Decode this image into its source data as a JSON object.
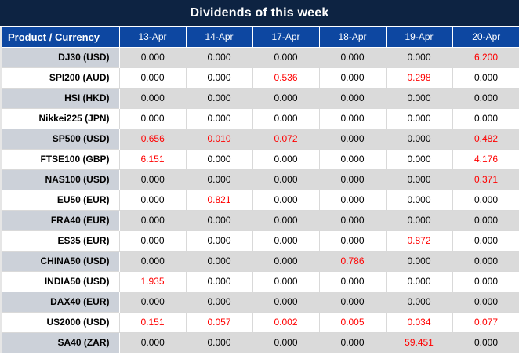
{
  "title": "Dividends of this week",
  "columns": [
    "Product / Currency",
    "13-Apr",
    "14-Apr",
    "17-Apr",
    "18-Apr",
    "19-Apr",
    "20-Apr"
  ],
  "rows": [
    {
      "product": "DJ30 (USD)",
      "values": [
        "0.000",
        "0.000",
        "0.000",
        "0.000",
        "0.000",
        "6.200"
      ],
      "red": [
        false,
        false,
        false,
        false,
        false,
        true
      ]
    },
    {
      "product": "SPI200 (AUD)",
      "values": [
        "0.000",
        "0.000",
        "0.536",
        "0.000",
        "0.298",
        "0.000"
      ],
      "red": [
        false,
        false,
        true,
        false,
        true,
        false
      ]
    },
    {
      "product": "HSI (HKD)",
      "values": [
        "0.000",
        "0.000",
        "0.000",
        "0.000",
        "0.000",
        "0.000"
      ],
      "red": [
        false,
        false,
        false,
        false,
        false,
        false
      ]
    },
    {
      "product": "Nikkei225 (JPN)",
      "values": [
        "0.000",
        "0.000",
        "0.000",
        "0.000",
        "0.000",
        "0.000"
      ],
      "red": [
        false,
        false,
        false,
        false,
        false,
        false
      ]
    },
    {
      "product": "SP500 (USD)",
      "values": [
        "0.656",
        "0.010",
        "0.072",
        "0.000",
        "0.000",
        "0.482"
      ],
      "red": [
        true,
        true,
        true,
        false,
        false,
        true
      ]
    },
    {
      "product": "FTSE100 (GBP)",
      "values": [
        "6.151",
        "0.000",
        "0.000",
        "0.000",
        "0.000",
        "4.176"
      ],
      "red": [
        true,
        false,
        false,
        false,
        false,
        true
      ]
    },
    {
      "product": "NAS100 (USD)",
      "values": [
        "0.000",
        "0.000",
        "0.000",
        "0.000",
        "0.000",
        "0.371"
      ],
      "red": [
        false,
        false,
        false,
        false,
        false,
        true
      ]
    },
    {
      "product": "EU50 (EUR)",
      "values": [
        "0.000",
        "0.821",
        "0.000",
        "0.000",
        "0.000",
        "0.000"
      ],
      "red": [
        false,
        true,
        false,
        false,
        false,
        false
      ]
    },
    {
      "product": "FRA40 (EUR)",
      "values": [
        "0.000",
        "0.000",
        "0.000",
        "0.000",
        "0.000",
        "0.000"
      ],
      "red": [
        false,
        false,
        false,
        false,
        false,
        false
      ]
    },
    {
      "product": "ES35 (EUR)",
      "values": [
        "0.000",
        "0.000",
        "0.000",
        "0.000",
        "0.872",
        "0.000"
      ],
      "red": [
        false,
        false,
        false,
        false,
        true,
        false
      ]
    },
    {
      "product": "CHINA50 (USD)",
      "values": [
        "0.000",
        "0.000",
        "0.000",
        "0.786",
        "0.000",
        "0.000"
      ],
      "red": [
        false,
        false,
        false,
        true,
        false,
        false
      ]
    },
    {
      "product": "INDIA50 (USD)",
      "values": [
        "1.935",
        "0.000",
        "0.000",
        "0.000",
        "0.000",
        "0.000"
      ],
      "red": [
        true,
        false,
        false,
        false,
        false,
        false
      ]
    },
    {
      "product": "DAX40 (EUR)",
      "values": [
        "0.000",
        "0.000",
        "0.000",
        "0.000",
        "0.000",
        "0.000"
      ],
      "red": [
        false,
        false,
        false,
        false,
        false,
        false
      ]
    },
    {
      "product": "US2000 (USD)",
      "values": [
        "0.151",
        "0.057",
        "0.002",
        "0.005",
        "0.034",
        "0.077"
      ],
      "red": [
        true,
        true,
        true,
        true,
        true,
        true
      ]
    },
    {
      "product": "SA40 (ZAR)",
      "values": [
        "0.000",
        "0.000",
        "0.000",
        "0.000",
        "59.451",
        "0.000"
      ],
      "red": [
        false,
        false,
        false,
        false,
        true,
        false
      ]
    }
  ],
  "colors": {
    "title_bar": "#0d2342",
    "header_blue": "#0d47a1",
    "row_gray": "#dadada",
    "label_gray": "#ccd1d9",
    "value_red": "#ff0000",
    "gridline": "#d9d9d9"
  }
}
